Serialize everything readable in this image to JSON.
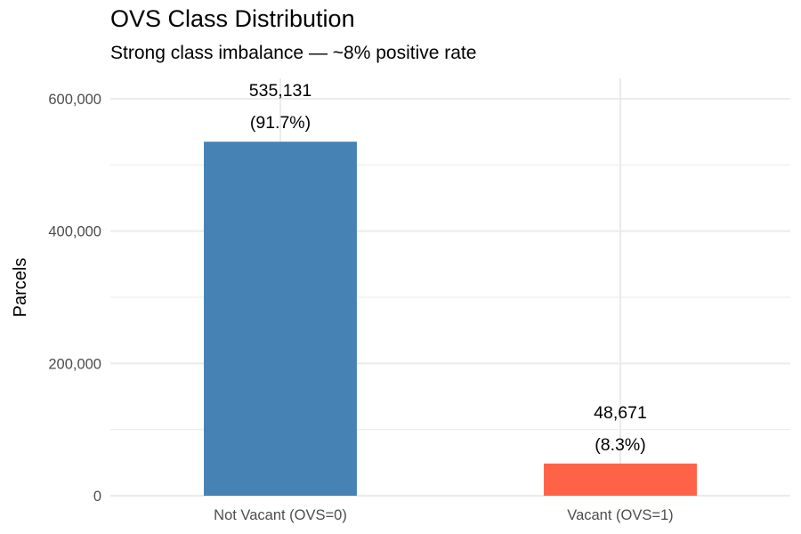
{
  "chart_data": {
    "type": "bar",
    "title": "OVS Class Distribution",
    "subtitle": "Strong class imbalance — ~8% positive rate",
    "xlabel": "",
    "ylabel": "Parcels",
    "categories": [
      "Not Vacant (OVS=0)",
      "Vacant (OVS=1)"
    ],
    "values": [
      535131,
      48671
    ],
    "value_labels": [
      "535,131",
      "48,671"
    ],
    "percent_labels": [
      "(91.7%)",
      "(8.3%)"
    ],
    "colors": [
      "#4682B4",
      "#FF6347"
    ],
    "ylim": [
      0,
      630000
    ],
    "yticks": [
      0,
      200000,
      400000,
      600000
    ],
    "ytick_labels": [
      "0",
      "200,000",
      "400,000",
      "600,000"
    ],
    "grid": true,
    "legend": "none"
  }
}
